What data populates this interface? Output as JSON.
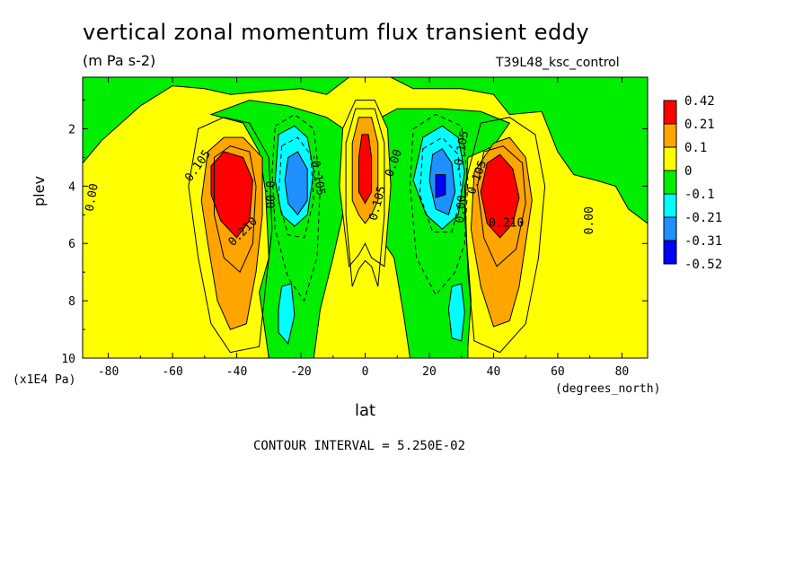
{
  "title": "vertical zonal momentum flux transient eddy",
  "units": "(m Pa s-2)",
  "run_label": "T39L48_ksc_control",
  "contour_note": "CONTOUR INTERVAL = 5.250E-02",
  "chart_data": {
    "type": "heatmap",
    "xlabel": "lat",
    "xunit": "(degrees_north)",
    "ylabel": "plev",
    "yunit": "(x1E4 Pa)",
    "xlim": [
      -88,
      88
    ],
    "ylim": [
      0.2,
      10
    ],
    "y_inverted": true,
    "x_ticks": [
      -80,
      -60,
      -40,
      -20,
      0,
      20,
      40,
      60,
      80
    ],
    "x_tick_labels": [
      "-80",
      "-60",
      "-40",
      "-20",
      "0",
      "20",
      "40",
      "60",
      "80"
    ],
    "y_ticks": [
      2,
      4,
      6,
      8,
      10
    ],
    "y_tick_labels": [
      "2",
      "4",
      "6",
      "8",
      "10"
    ],
    "contour_interval": 0.0525,
    "colorbar": {
      "levels": [
        "0.42",
        "0.21",
        "0.1",
        "0",
        "-0.1",
        "-0.21",
        "-0.31",
        "-0.52"
      ],
      "colors": [
        "#ff0000",
        "#ffa500",
        "#ffff00",
        "#00ee00",
        "#00ffff",
        "#1e90ff",
        "#0000ff"
      ]
    },
    "background_color": "#ffff00",
    "regions": [
      {
        "level": "0",
        "color": "#00ee00",
        "points": [
          [
            -88,
            0.1
          ],
          [
            88,
            0.1
          ],
          [
            88,
            5.3
          ],
          [
            82,
            4.8
          ],
          [
            78,
            4.0
          ],
          [
            72,
            3.8
          ],
          [
            65,
            3.6
          ],
          [
            60,
            2.8
          ],
          [
            55,
            1.4
          ],
          [
            45,
            1.5
          ],
          [
            40,
            0.8
          ],
          [
            30,
            0.6
          ],
          [
            15,
            0.6
          ],
          [
            8,
            0.2
          ],
          [
            -5,
            0.2
          ],
          [
            -12,
            0.8
          ],
          [
            -20,
            0.6
          ],
          [
            -32,
            0.7
          ],
          [
            -42,
            0.8
          ],
          [
            -50,
            0.6
          ],
          [
            -60,
            0.5
          ],
          [
            -70,
            1.2
          ],
          [
            -76,
            1.8
          ],
          [
            -82,
            2.4
          ],
          [
            -88,
            3.2
          ]
        ]
      },
      {
        "level": "0",
        "color": "#00ee00",
        "points": [
          [
            -48,
            1.5
          ],
          [
            -38,
            1.8
          ],
          [
            -33,
            2.8
          ],
          [
            -31,
            4.2
          ],
          [
            -30,
            6.5
          ],
          [
            -33,
            7.7
          ],
          [
            -31,
            9.2
          ],
          [
            -30,
            10
          ],
          [
            -16,
            10
          ],
          [
            -14,
            8.3
          ],
          [
            -10,
            6.5
          ],
          [
            -6,
            4.5
          ],
          [
            -4,
            2.2
          ],
          [
            -12,
            1.6
          ],
          [
            -24,
            1.2
          ],
          [
            -36,
            1.0
          ]
        ]
      },
      {
        "level": "0",
        "color": "#00ee00",
        "points": [
          [
            -5,
            1.6
          ],
          [
            5,
            1.6
          ],
          [
            10,
            1.3
          ],
          [
            24,
            1.3
          ],
          [
            36,
            1.4
          ],
          [
            45,
            1.8
          ],
          [
            40,
            2.6
          ],
          [
            32,
            3.0
          ],
          [
            31,
            5.0
          ],
          [
            33,
            8.0
          ],
          [
            32,
            9.6
          ],
          [
            32,
            10
          ],
          [
            14,
            10
          ],
          [
            12,
            8.5
          ],
          [
            9,
            6.5
          ],
          [
            6,
            6.0
          ],
          [
            3,
            5.2
          ],
          [
            0,
            5.2
          ],
          [
            -3,
            5.4
          ],
          [
            -6,
            5.2
          ],
          [
            -5,
            4.0
          ]
        ]
      },
      {
        "level": "0.1",
        "color": "#ffff00",
        "points": [
          [
            -3,
            1.0
          ],
          [
            3,
            1.0
          ],
          [
            7,
            2.0
          ],
          [
            8,
            4.0
          ],
          [
            6,
            6.8
          ],
          [
            2,
            6.5
          ],
          [
            0,
            6.0
          ],
          [
            -2,
            6.4
          ],
          [
            -5,
            6.8
          ],
          [
            -8,
            4.0
          ],
          [
            -7,
            2.0
          ]
        ]
      },
      {
        "level": "0.1",
        "color": "#ffa500",
        "points": [
          [
            -49,
            2.8
          ],
          [
            -44,
            2.3
          ],
          [
            -38,
            2.3
          ],
          [
            -32,
            3.0
          ],
          [
            -32,
            5.0
          ],
          [
            -34,
            7.0
          ],
          [
            -37,
            8.8
          ],
          [
            -42,
            9.0
          ],
          [
            -46,
            8.0
          ],
          [
            -49,
            6.0
          ],
          [
            -51,
            4.5
          ]
        ]
      },
      {
        "level": "0.1",
        "color": "#ffa500",
        "points": [
          [
            40,
            2.5
          ],
          [
            45,
            2.3
          ],
          [
            50,
            3.0
          ],
          [
            52,
            4.5
          ],
          [
            50,
            6.0
          ],
          [
            48,
            7.5
          ],
          [
            45,
            8.7
          ],
          [
            40,
            8.9
          ],
          [
            36,
            7.5
          ],
          [
            33,
            5.5
          ],
          [
            34,
            3.5
          ]
        ]
      },
      {
        "level": "0.1",
        "color": "#ffa500",
        "points": [
          [
            -2,
            1.6
          ],
          [
            2,
            1.6
          ],
          [
            4,
            2.5
          ],
          [
            4,
            4.5
          ],
          [
            2,
            5.0
          ],
          [
            0,
            5.3
          ],
          [
            -2,
            5.0
          ],
          [
            -4,
            4.5
          ],
          [
            -4,
            2.5
          ]
        ]
      },
      {
        "level": "0.21",
        "color": "#ff0000",
        "points": [
          [
            -48,
            3.3
          ],
          [
            -44,
            2.8
          ],
          [
            -38,
            3.0
          ],
          [
            -35,
            3.8
          ],
          [
            -36,
            5.2
          ],
          [
            -40,
            5.8
          ],
          [
            -45,
            5.2
          ],
          [
            -48,
            4.3
          ]
        ]
      },
      {
        "level": "0.21",
        "color": "#ff0000",
        "points": [
          [
            38,
            3.2
          ],
          [
            42,
            2.9
          ],
          [
            46,
            3.4
          ],
          [
            48,
            4.4
          ],
          [
            46,
            5.3
          ],
          [
            42,
            5.8
          ],
          [
            38,
            5.3
          ],
          [
            36,
            4.2
          ]
        ]
      },
      {
        "level": "0.21",
        "color": "#ff0000",
        "points": [
          [
            -1,
            2.2
          ],
          [
            1,
            2.2
          ],
          [
            2,
            3.0
          ],
          [
            2,
            4.2
          ],
          [
            0,
            4.6
          ],
          [
            -2,
            4.2
          ],
          [
            -2,
            3.0
          ]
        ]
      },
      {
        "level": "-0.1",
        "color": "#00ffff",
        "points": [
          [
            -27,
            2.2
          ],
          [
            -22,
            1.9
          ],
          [
            -18,
            2.3
          ],
          [
            -16,
            3.5
          ],
          [
            -18,
            5.0
          ],
          [
            -22,
            5.4
          ],
          [
            -26,
            5.0
          ],
          [
            -28,
            3.8
          ]
        ]
      },
      {
        "level": "-0.1",
        "color": "#00ffff",
        "points": [
          [
            18,
            2.3
          ],
          [
            24,
            1.9
          ],
          [
            29,
            2.3
          ],
          [
            31,
            3.5
          ],
          [
            29,
            5.0
          ],
          [
            24,
            5.5
          ],
          [
            19,
            5.0
          ],
          [
            15,
            3.8
          ]
        ]
      },
      {
        "level": "-0.1",
        "color": "#00ffff",
        "points": [
          [
            -26,
            7.5
          ],
          [
            -23,
            7.4
          ],
          [
            -22,
            8.5
          ],
          [
            -24,
            9.5
          ],
          [
            -27,
            9.1
          ],
          [
            -27,
            8.3
          ]
        ]
      },
      {
        "level": "-0.1",
        "color": "#00ffff",
        "points": [
          [
            27,
            7.5
          ],
          [
            30,
            7.4
          ],
          [
            31,
            8.4
          ],
          [
            30,
            9.4
          ],
          [
            27,
            9.3
          ],
          [
            26,
            8.3
          ]
        ]
      },
      {
        "level": "-0.21",
        "color": "#1e90ff",
        "points": [
          [
            -24,
            3.0
          ],
          [
            -21,
            2.8
          ],
          [
            -18,
            3.4
          ],
          [
            -18,
            4.5
          ],
          [
            -21,
            5.0
          ],
          [
            -24,
            4.6
          ],
          [
            -25,
            3.8
          ]
        ]
      },
      {
        "level": "-0.21",
        "color": "#1e90ff",
        "points": [
          [
            21,
            2.9
          ],
          [
            24,
            2.7
          ],
          [
            27,
            3.2
          ],
          [
            28,
            4.2
          ],
          [
            26,
            5.0
          ],
          [
            22,
            4.8
          ],
          [
            20,
            3.8
          ]
        ]
      },
      {
        "level": "-0.31",
        "color": "#0000ff",
        "points": [
          [
            22,
            3.6
          ],
          [
            25,
            3.6
          ],
          [
            25,
            4.3
          ],
          [
            22,
            4.4
          ]
        ]
      }
    ],
    "contour_lines": [
      {
        "style": "solid",
        "points": [
          [
            -52,
            2.0
          ],
          [
            -44,
            1.6
          ],
          [
            -36,
            1.8
          ],
          [
            -30,
            3.0
          ],
          [
            -29,
            5.5
          ],
          [
            -31,
            7.5
          ],
          [
            -33,
            9.6
          ],
          [
            -42,
            9.8
          ],
          [
            -48,
            8.8
          ],
          [
            -52,
            6.5
          ],
          [
            -55,
            4.0
          ]
        ]
      },
      {
        "style": "solid",
        "points": [
          [
            36,
            1.8
          ],
          [
            45,
            1.6
          ],
          [
            53,
            2.2
          ],
          [
            56,
            4.0
          ],
          [
            54,
            6.5
          ],
          [
            50,
            8.8
          ],
          [
            42,
            9.8
          ],
          [
            34,
            9.4
          ],
          [
            32,
            7.0
          ],
          [
            31,
            4.0
          ]
        ]
      },
      {
        "style": "solid",
        "points": [
          [
            -47,
            3.0
          ],
          [
            -42,
            2.6
          ],
          [
            -36,
            2.8
          ],
          [
            -34,
            4.0
          ],
          [
            -35,
            6.0
          ],
          [
            -39,
            7.0
          ],
          [
            -44,
            6.5
          ],
          [
            -47,
            5.0
          ]
        ]
      },
      {
        "style": "solid",
        "points": [
          [
            37,
            2.8
          ],
          [
            43,
            2.6
          ],
          [
            49,
            3.2
          ],
          [
            50,
            4.6
          ],
          [
            47,
            6.2
          ],
          [
            41,
            6.8
          ],
          [
            37,
            5.8
          ],
          [
            35,
            4.0
          ]
        ]
      },
      {
        "style": "dashed",
        "points": [
          [
            -28,
            1.9
          ],
          [
            -22,
            1.5
          ],
          [
            -16,
            2.0
          ],
          [
            -14,
            4.0
          ],
          [
            -15,
            6.5
          ],
          [
            -19,
            8.0
          ],
          [
            -24,
            7.2
          ],
          [
            -28,
            5.5
          ],
          [
            -29,
            3.5
          ]
        ]
      },
      {
        "style": "dashed",
        "points": [
          [
            15,
            2.0
          ],
          [
            22,
            1.5
          ],
          [
            30,
            1.9
          ],
          [
            32,
            3.8
          ],
          [
            31,
            6.0
          ],
          [
            28,
            7.0
          ],
          [
            22,
            7.8
          ],
          [
            16,
            6.5
          ],
          [
            14,
            4.0
          ]
        ]
      },
      {
        "style": "dashed",
        "points": [
          [
            -26,
            2.6
          ],
          [
            -21,
            2.3
          ],
          [
            -17,
            2.9
          ],
          [
            -16,
            4.5
          ],
          [
            -19,
            5.8
          ],
          [
            -24,
            5.7
          ],
          [
            -27,
            4.5
          ]
        ]
      },
      {
        "style": "dashed",
        "points": [
          [
            18,
            2.7
          ],
          [
            24,
            2.3
          ],
          [
            29,
            2.9
          ],
          [
            30,
            4.3
          ],
          [
            27,
            5.6
          ],
          [
            21,
            5.6
          ],
          [
            17,
            4.3
          ]
        ]
      },
      {
        "style": "solid",
        "points": [
          [
            -3,
            1.3
          ],
          [
            3,
            1.3
          ],
          [
            6,
            2.5
          ],
          [
            6,
            5.0
          ],
          [
            4,
            7.5
          ],
          [
            2,
            6.8
          ],
          [
            0,
            6.6
          ],
          [
            -2,
            6.9
          ],
          [
            -4,
            7.5
          ],
          [
            -6,
            5.0
          ],
          [
            -6,
            2.5
          ]
        ]
      }
    ],
    "contour_labels": [
      {
        "text": "0.105",
        "x": -52,
        "y": 3.3,
        "angle": -55
      },
      {
        "text": "0.210",
        "x": -38,
        "y": 5.6,
        "angle": -45
      },
      {
        "text": "0.00",
        "x": -85,
        "y": 4.4,
        "angle": -80
      },
      {
        "text": "0.00",
        "x": -30,
        "y": 4.3,
        "angle": 90
      },
      {
        "text": "-0.105",
        "x": -15,
        "y": 3.6,
        "angle": 80
      },
      {
        "text": "0.105",
        "x": 4,
        "y": 4.6,
        "angle": -75
      },
      {
        "text": "0.00",
        "x": 9,
        "y": 3.2,
        "angle": -70
      },
      {
        "text": "-0.105",
        "x": 30,
        "y": 2.8,
        "angle": -80
      },
      {
        "text": "0.00",
        "x": 30,
        "y": 4.8,
        "angle": -85
      },
      {
        "text": "0.105",
        "x": 35,
        "y": 3.7,
        "angle": -70
      },
      {
        "text": "0.210",
        "x": 44,
        "y": 5.3,
        "angle": 0
      },
      {
        "text": "0.00",
        "x": 70,
        "y": 5.2,
        "angle": -90
      }
    ]
  }
}
